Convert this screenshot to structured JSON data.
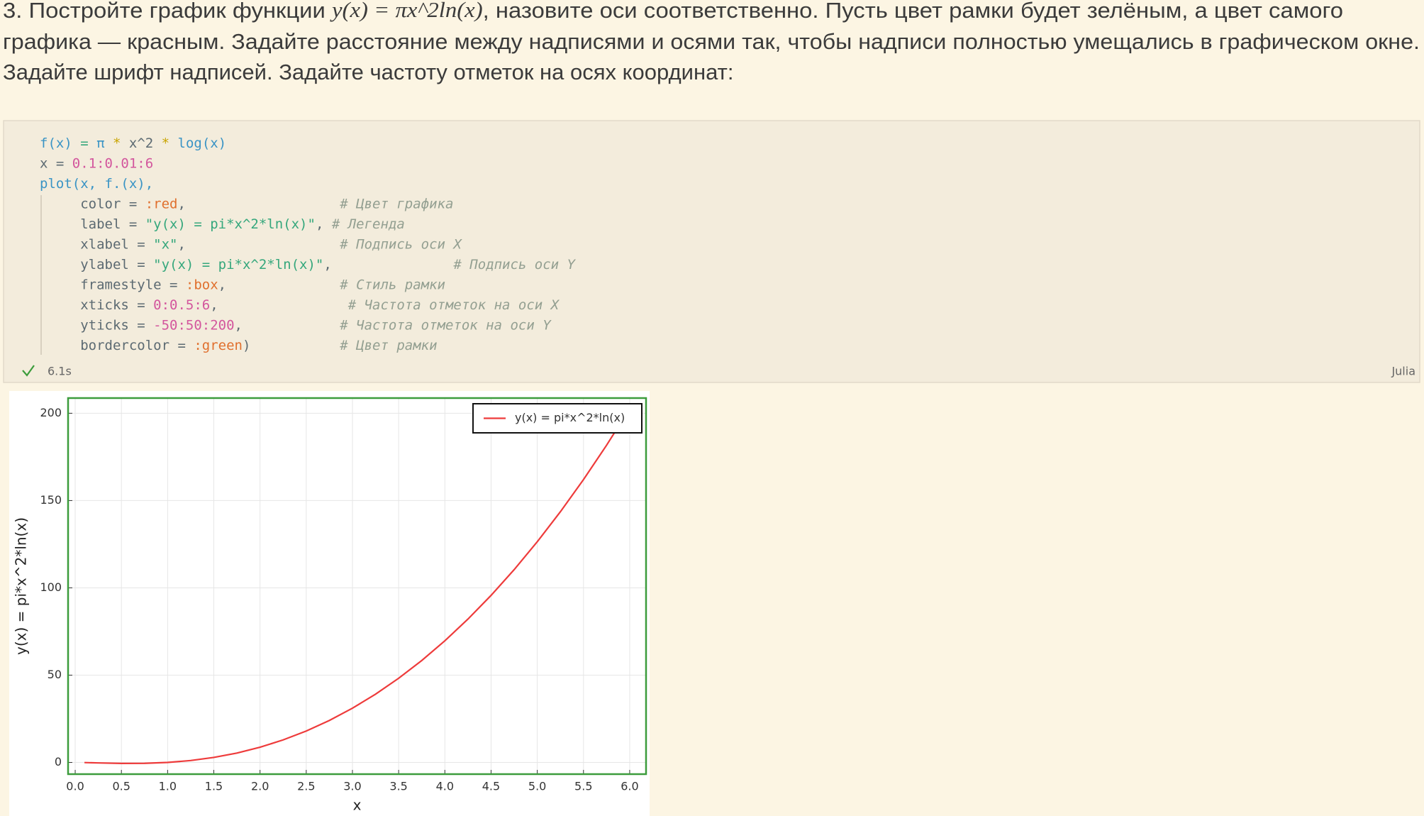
{
  "task": {
    "line1": [
      "3. Постройте график функции ",
      "y(x) = πx^2ln(x)",
      ", назовите оси соответственно. Пусть цвет рамки будет зелёным, а цвет самого"
    ],
    "line2": "графика — красным. Задайте расстояние между надписями и осями так, чтобы надписи полностью умещались в графическом окне.",
    "line3": "Задайте шрифт надписей. Задайте частоту отметок на осях координат:"
  },
  "cell": {
    "code": [
      [
        {
          "t": "f(x)",
          "c": "#3a94c5"
        },
        {
          "t": " = ",
          "c": "#35a77c"
        },
        {
          "t": "π",
          "c": "#3a94c5"
        },
        {
          "t": " * ",
          "c": "#c9a400"
        },
        {
          "t": "x^2",
          "c": "#5c6a72"
        },
        {
          "t": " * ",
          "c": "#c9a400"
        },
        {
          "t": "log(x)",
          "c": "#3a94c5"
        }
      ],
      [
        {
          "t": "x = ",
          "c": "#5c6a72"
        },
        {
          "t": "0.1:0.01:6",
          "c": "#d3569d"
        }
      ],
      [
        {
          "t": "plot(x, f.(x),",
          "c": "#3a94c5"
        }
      ],
      [
        {
          "t": "     color = ",
          "c": "#5c6a72"
        },
        {
          "t": ":red",
          "c": "#e0702e"
        },
        {
          "t": ",                   ",
          "c": "#5c6a72"
        },
        {
          "t": "# Цвет графика",
          "c": "#939f91"
        }
      ],
      [
        {
          "t": "     label = ",
          "c": "#5c6a72"
        },
        {
          "t": "\"y(x) = pi*x^2*ln(x)\"",
          "c": "#35a77c"
        },
        {
          "t": ", ",
          "c": "#5c6a72"
        },
        {
          "t": "# Легенда",
          "c": "#939f91"
        }
      ],
      [
        {
          "t": "     xlabel = ",
          "c": "#5c6a72"
        },
        {
          "t": "\"x\"",
          "c": "#35a77c"
        },
        {
          "t": ",                   ",
          "c": "#5c6a72"
        },
        {
          "t": "# Подпись оси X",
          "c": "#939f91"
        }
      ],
      [
        {
          "t": "     ylabel = ",
          "c": "#5c6a72"
        },
        {
          "t": "\"y(x) = pi*x^2*ln(x)\"",
          "c": "#35a77c"
        },
        {
          "t": ",               ",
          "c": "#5c6a72"
        },
        {
          "t": "# Подпись оси Y",
          "c": "#939f91"
        }
      ],
      [
        {
          "t": "     framestyle = ",
          "c": "#5c6a72"
        },
        {
          "t": ":box",
          "c": "#e0702e"
        },
        {
          "t": ",              ",
          "c": "#5c6a72"
        },
        {
          "t": "# Стиль рамки",
          "c": "#939f91"
        }
      ],
      [
        {
          "t": "     xticks = ",
          "c": "#5c6a72"
        },
        {
          "t": "0:0.5:6",
          "c": "#d3569d"
        },
        {
          "t": ",                ",
          "c": "#5c6a72"
        },
        {
          "t": "# Частота отметок на оси X",
          "c": "#939f91"
        }
      ],
      [
        {
          "t": "     yticks = ",
          "c": "#5c6a72"
        },
        {
          "t": "-50:50:200",
          "c": "#d3569d"
        },
        {
          "t": ",            ",
          "c": "#5c6a72"
        },
        {
          "t": "# Частота отметок на оси Y",
          "c": "#939f91"
        }
      ],
      [
        {
          "t": "     bordercolor = ",
          "c": "#5c6a72"
        },
        {
          "t": ":green",
          "c": "#e0702e"
        },
        {
          "t": ")           ",
          "c": "#5c6a72"
        },
        {
          "t": "# Цвет рамки",
          "c": "#939f91"
        }
      ]
    ],
    "time": "6.1s",
    "language": "Julia"
  },
  "chart_data": {
    "type": "line",
    "xlabel": "x",
    "ylabel": "y(x) = pi*x^2*ln(x)",
    "x": [
      0.1,
      0.25,
      0.5,
      0.75,
      1.0,
      1.25,
      1.5,
      1.75,
      2.0,
      2.25,
      2.5,
      2.75,
      3.0,
      3.25,
      3.5,
      3.75,
      4.0,
      4.25,
      4.5,
      4.75,
      5.0,
      5.25,
      5.5,
      5.75,
      6.0
    ],
    "series": [
      {
        "name": "y(x) = pi*x^2*ln(x)",
        "color": "#ee3b3b",
        "values": [
          -0.07,
          -0.27,
          -0.54,
          -0.51,
          0,
          1.1,
          2.87,
          5.38,
          8.71,
          12.9,
          17.99,
          24.03,
          31.06,
          39.11,
          48.21,
          58.39,
          69.68,
          82.11,
          95.69,
          110.44,
          126.41,
          143.59,
          162.01,
          181.69,
          202.64
        ]
      }
    ],
    "xlim": [
      -0.077,
      6.177
    ],
    "ylim": [
      -6.7,
      208.7
    ],
    "xticks": [
      {
        "value": 0,
        "label": "0.0"
      },
      0.5,
      {
        "value": 1,
        "label": "1.0"
      },
      1.5,
      {
        "value": 2,
        "label": "2.0"
      },
      2.5,
      {
        "value": 3,
        "label": "3.0"
      },
      3.5,
      {
        "value": 4,
        "label": "4.0"
      },
      4.5,
      {
        "value": 5,
        "label": "5.0"
      },
      5.5,
      {
        "value": 6,
        "label": "6.0"
      }
    ],
    "yticks": [
      0,
      50,
      100,
      150,
      200
    ],
    "grid": true,
    "legend": "top-right",
    "frame_color": "#3c9c3c"
  }
}
